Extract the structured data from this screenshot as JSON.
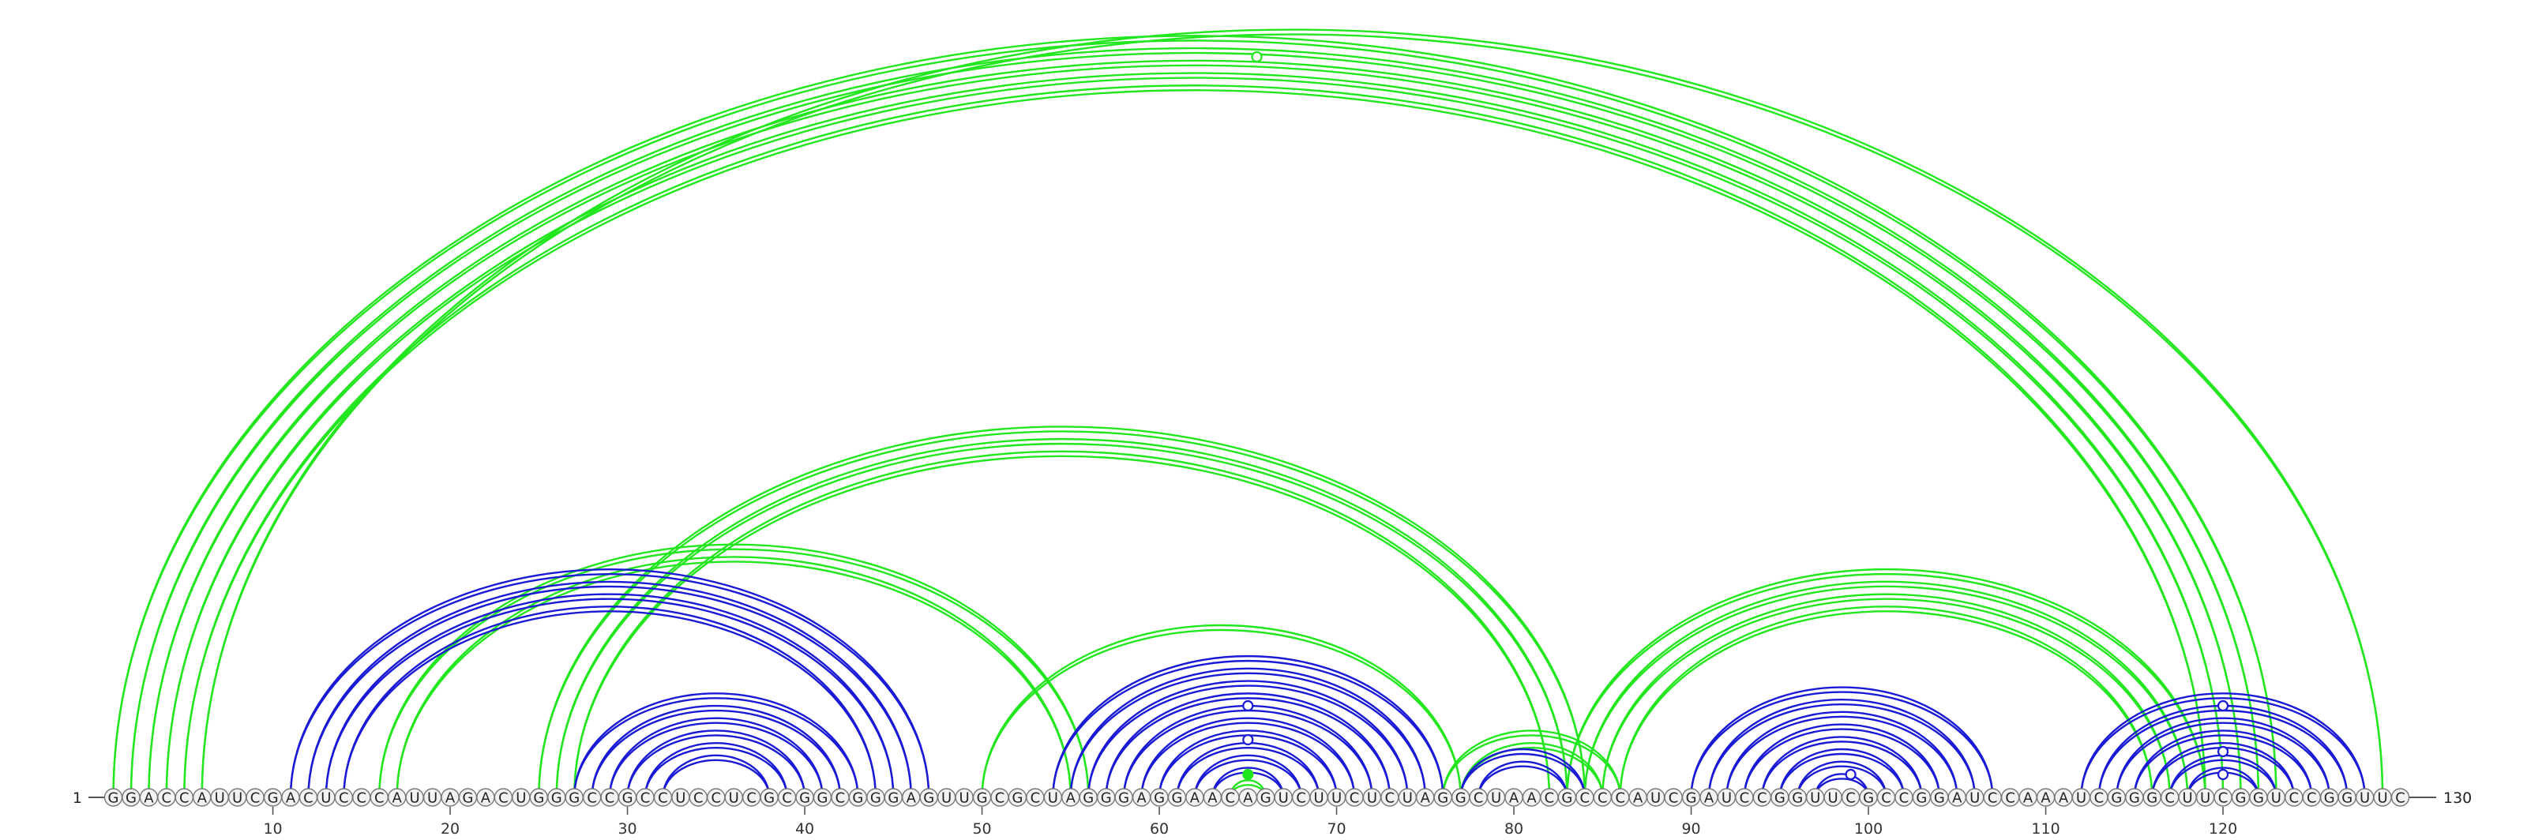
{
  "sequence": "GGACCAUUCGACUCCCAUUAGACUGGGCCGCCUCCUCGCGGCGGGAGUUGCGCUAGGGAGGAACAGUCUUCUCUAGGCUAACGCCCAUCGAUCCGGUUCGCCGGAUCCAAAUCGGGCUUCGGUCCGGUUC",
  "start_label": "1",
  "end_label": "130",
  "tick_labels": [
    "10",
    "20",
    "30",
    "40",
    "50",
    "60",
    "70",
    "80",
    "90",
    "100",
    "110",
    "120"
  ],
  "colors": {
    "blue": "#1a1ad6",
    "green": "#22e61e",
    "axis": "#555555",
    "nucleotide_fill": "#f2f2f2"
  },
  "pairs_blue": [
    [
      11,
      47
    ],
    [
      12,
      46
    ],
    [
      13,
      45
    ],
    [
      14,
      44
    ],
    [
      27,
      43
    ],
    [
      28,
      42
    ],
    [
      29,
      41
    ],
    [
      30,
      40
    ],
    [
      31,
      39
    ],
    [
      32,
      38
    ],
    [
      54,
      76
    ],
    [
      55,
      75
    ],
    [
      56,
      74
    ],
    [
      57,
      73
    ],
    [
      58,
      72
    ],
    [
      59,
      71
    ],
    [
      60,
      70
    ],
    [
      61,
      69
    ],
    [
      62,
      68
    ],
    [
      63,
      67
    ],
    [
      77,
      84
    ],
    [
      78,
      83
    ],
    [
      90,
      107
    ],
    [
      91,
      106
    ],
    [
      92,
      105
    ],
    [
      93,
      104
    ],
    [
      94,
      103
    ],
    [
      95,
      102
    ],
    [
      96,
      101
    ],
    [
      97,
      100
    ],
    [
      112,
      128
    ],
    [
      113,
      127
    ],
    [
      114,
      126
    ],
    [
      115,
      125
    ],
    [
      116,
      124
    ],
    [
      117,
      123
    ],
    [
      118,
      122
    ]
  ],
  "pairs_green": [
    [
      1,
      123
    ],
    [
      2,
      122
    ],
    [
      3,
      121
    ],
    [
      4,
      120
    ],
    [
      5,
      119
    ],
    [
      6,
      129
    ],
    [
      16,
      56
    ],
    [
      17,
      55
    ],
    [
      25,
      84
    ],
    [
      26,
      83
    ],
    [
      27,
      82
    ],
    [
      50,
      77
    ],
    [
      64,
      66
    ],
    [
      76,
      86
    ],
    [
      77,
      85
    ],
    [
      83,
      119
    ],
    [
      84,
      118
    ],
    [
      85,
      117
    ],
    [
      86,
      116
    ]
  ],
  "highlight_marker_index": 64.5
}
